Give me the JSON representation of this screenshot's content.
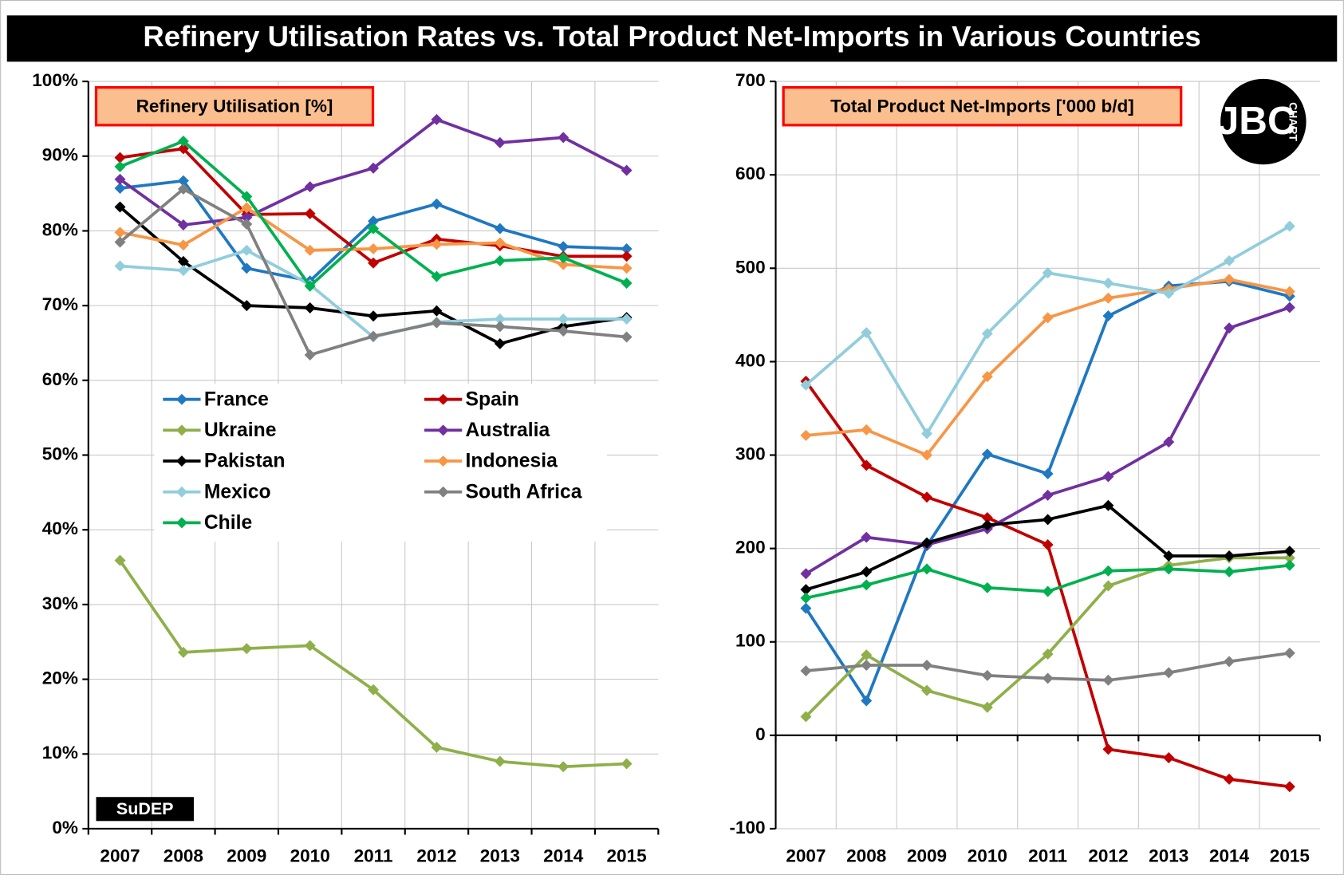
{
  "title": "Refinery Utilisation Rates vs. Total Product Net-Imports in Various Countries",
  "logos": {
    "sudep": "SuDEP",
    "bc": "JBC",
    "bc_word": "CHART"
  },
  "chart_data": [
    {
      "type": "line",
      "title": "Refinery Utilisation  [%]",
      "categories": [
        "2007",
        "2008",
        "2009",
        "2010",
        "2011",
        "2012",
        "2013",
        "2014",
        "2015"
      ],
      "ylim": [
        0,
        100
      ],
      "yticks": [
        {
          "value": 0,
          "label": "0%"
        },
        {
          "value": 10,
          "label": "10%"
        },
        {
          "value": 20,
          "label": "20%"
        },
        {
          "value": 30,
          "label": "30%"
        },
        {
          "value": 40,
          "label": "40%"
        },
        {
          "value": 50,
          "label": "50%"
        },
        {
          "value": 60,
          "label": "60%"
        },
        {
          "value": 70,
          "label": "70%"
        },
        {
          "value": 80,
          "label": "80%"
        },
        {
          "value": 90,
          "label": "90%"
        },
        {
          "value": 100,
          "label": "100%"
        }
      ],
      "grid": true,
      "series": [
        {
          "name": "France",
          "color": "#1f78c1",
          "values": [
            85.7,
            86.7,
            75.0,
            73.3,
            81.3,
            83.6,
            80.3,
            77.9,
            77.6
          ]
        },
        {
          "name": "Spain",
          "color": "#c00000",
          "values": [
            89.8,
            91.0,
            82.2,
            82.3,
            75.7,
            78.9,
            78.0,
            76.6,
            76.6
          ]
        },
        {
          "name": "Ukraine",
          "color": "#8faf4a",
          "values": [
            35.9,
            23.6,
            24.1,
            24.5,
            18.6,
            10.9,
            9.0,
            8.3,
            8.7
          ]
        },
        {
          "name": "Australia",
          "color": "#7030a0",
          "values": [
            86.9,
            80.8,
            81.8,
            85.9,
            88.4,
            94.9,
            91.8,
            92.5,
            88.1
          ]
        },
        {
          "name": "Pakistan",
          "color": "#000000",
          "values": [
            83.2,
            75.9,
            70.0,
            69.7,
            68.6,
            69.3,
            64.9,
            67.2,
            68.4
          ]
        },
        {
          "name": "Indonesia",
          "color": "#f79646",
          "values": [
            79.8,
            78.1,
            83.1,
            77.4,
            77.6,
            78.2,
            78.4,
            75.5,
            75.0
          ]
        },
        {
          "name": "Mexico",
          "color": "#92cddc",
          "values": [
            75.3,
            74.7,
            77.4,
            72.8,
            65.8,
            67.8,
            68.2,
            68.2,
            68.2
          ]
        },
        {
          "name": "South Africa",
          "color": "#808080",
          "values": [
            78.5,
            85.6,
            80.9,
            63.4,
            65.9,
            67.7,
            67.2,
            66.6,
            65.8
          ]
        },
        {
          "name": "Chile",
          "color": "#00b050",
          "values": [
            88.6,
            92.0,
            84.6,
            72.6,
            80.3,
            73.9,
            76.0,
            76.4,
            73.0
          ]
        }
      ]
    },
    {
      "type": "line",
      "title": "Total Product Net-Imports ['000 b/d]",
      "categories": [
        "2007",
        "2008",
        "2009",
        "2010",
        "2011",
        "2012",
        "2013",
        "2014",
        "2015"
      ],
      "ylim": [
        -100,
        700
      ],
      "yticks": [
        -100,
        0,
        100,
        200,
        300,
        400,
        500,
        600,
        700
      ],
      "grid": true,
      "series": [
        {
          "color": "#1f78c1",
          "values": [
            136,
            37,
            203,
            301,
            280,
            449,
            481,
            486,
            470
          ]
        },
        {
          "color": "#c00000",
          "values": [
            379,
            289,
            255,
            233,
            204,
            -15,
            -24,
            -47,
            -55
          ]
        },
        {
          "color": "#8faf4a",
          "values": [
            20,
            86,
            48,
            30,
            87,
            160,
            182,
            190,
            190
          ]
        },
        {
          "color": "#7030a0",
          "values": [
            173,
            212,
            204,
            221,
            257,
            277,
            314,
            436,
            458
          ]
        },
        {
          "color": "#000000",
          "values": [
            156,
            175,
            206,
            225,
            231,
            246,
            192,
            192,
            197
          ]
        },
        {
          "color": "#f79646",
          "values": [
            321,
            327,
            300,
            384,
            447,
            468,
            478,
            488,
            475
          ]
        },
        {
          "color": "#92cddc",
          "values": [
            375,
            431,
            323,
            430,
            495,
            484,
            473,
            508,
            545
          ]
        },
        {
          "color": "#808080",
          "values": [
            69,
            75,
            75,
            64,
            61,
            59,
            67,
            79,
            88
          ]
        },
        {
          "color": "#00b050",
          "values": [
            147,
            161,
            178,
            158,
            154,
            176,
            178,
            175,
            182
          ]
        }
      ]
    }
  ]
}
